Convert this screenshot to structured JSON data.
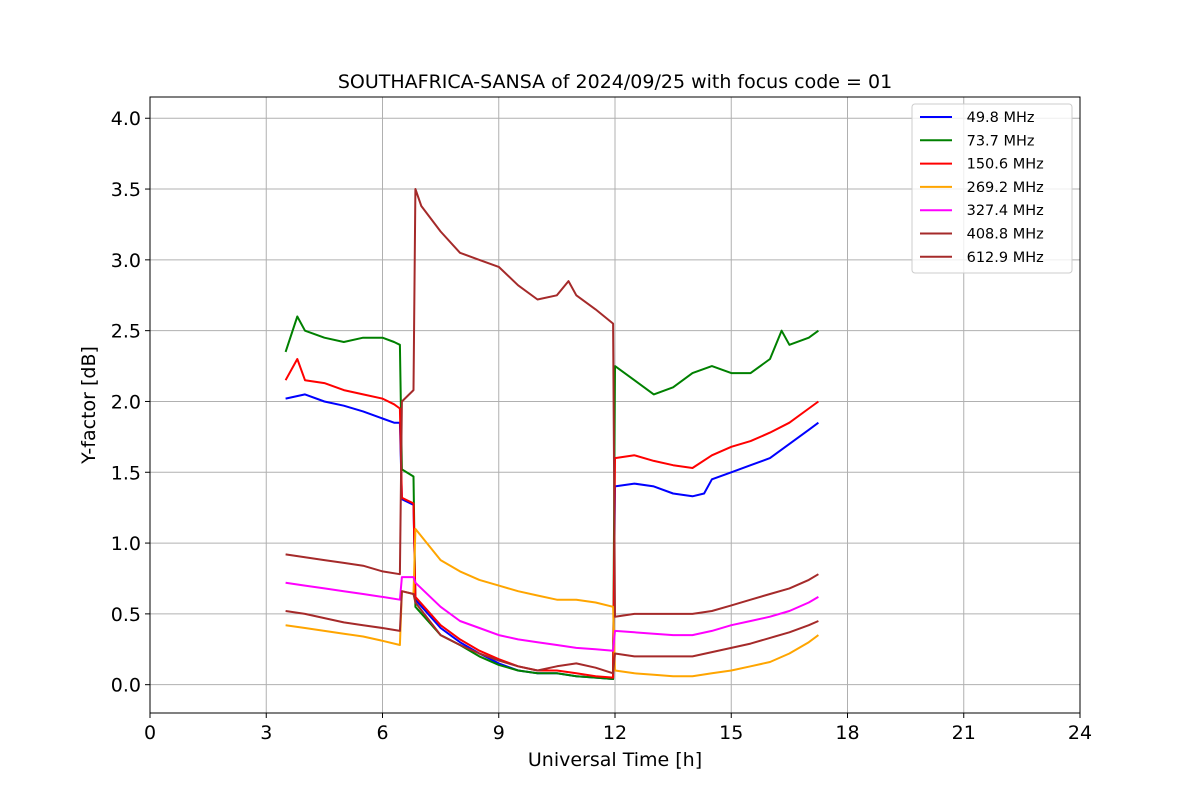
{
  "chart_data": {
    "type": "line",
    "title": "SOUTHAFRICA-SANSA of 2024/09/25 with focus code = 01",
    "xlabel": "Universal Time [h]",
    "ylabel": "Y-factor [dB]",
    "xlim": [
      0,
      24
    ],
    "ylim": [
      -0.2,
      4.15
    ],
    "xticks": [
      0,
      3,
      6,
      9,
      12,
      15,
      18,
      21,
      24
    ],
    "xtick_labels": [
      "0",
      "3",
      "6",
      "9",
      "12",
      "15",
      "18",
      "21",
      "24"
    ],
    "yticks": [
      0.0,
      0.5,
      1.0,
      1.5,
      2.0,
      2.5,
      3.0,
      3.5,
      4.0
    ],
    "ytick_labels": [
      "0.0",
      "0.5",
      "1.0",
      "1.5",
      "2.0",
      "2.5",
      "3.0",
      "3.5",
      "4.0"
    ],
    "grid": true,
    "legend_position": "top-right",
    "series": [
      {
        "name": " 49.8 MHz",
        "color": "#0000ff",
        "points": [
          [
            3.5,
            2.02
          ],
          [
            4.0,
            2.05
          ],
          [
            4.5,
            2.0
          ],
          [
            5.0,
            1.97
          ],
          [
            5.5,
            1.93
          ],
          [
            6.0,
            1.88
          ],
          [
            6.3,
            1.85
          ],
          [
            6.45,
            1.85
          ],
          [
            6.5,
            1.31
          ],
          [
            6.8,
            1.27
          ],
          [
            6.85,
            0.6
          ],
          [
            7.5,
            0.4
          ],
          [
            8.0,
            0.3
          ],
          [
            8.5,
            0.22
          ],
          [
            9.0,
            0.15
          ],
          [
            9.5,
            0.1
          ],
          [
            10.0,
            0.08
          ],
          [
            10.5,
            0.08
          ],
          [
            11.0,
            0.06
          ],
          [
            11.5,
            0.05
          ],
          [
            11.95,
            0.04
          ],
          [
            12.0,
            1.4
          ],
          [
            12.5,
            1.42
          ],
          [
            13.0,
            1.4
          ],
          [
            13.5,
            1.35
          ],
          [
            14.0,
            1.33
          ],
          [
            14.3,
            1.35
          ],
          [
            14.5,
            1.45
          ],
          [
            15.0,
            1.5
          ],
          [
            15.5,
            1.55
          ],
          [
            16.0,
            1.6
          ],
          [
            16.5,
            1.7
          ],
          [
            17.0,
            1.8
          ],
          [
            17.25,
            1.85
          ]
        ]
      },
      {
        "name": " 73.7 MHz",
        "color": "#008000",
        "points": [
          [
            3.5,
            2.35
          ],
          [
            3.8,
            2.6
          ],
          [
            4.0,
            2.5
          ],
          [
            4.5,
            2.45
          ],
          [
            5.0,
            2.42
          ],
          [
            5.5,
            2.45
          ],
          [
            6.0,
            2.45
          ],
          [
            6.3,
            2.42
          ],
          [
            6.45,
            2.4
          ],
          [
            6.5,
            1.52
          ],
          [
            6.8,
            1.47
          ],
          [
            6.85,
            0.55
          ],
          [
            7.5,
            0.35
          ],
          [
            8.0,
            0.28
          ],
          [
            8.5,
            0.2
          ],
          [
            9.0,
            0.14
          ],
          [
            9.5,
            0.1
          ],
          [
            10.0,
            0.08
          ],
          [
            10.5,
            0.08
          ],
          [
            11.0,
            0.06
          ],
          [
            11.5,
            0.05
          ],
          [
            11.95,
            0.04
          ],
          [
            12.0,
            2.25
          ],
          [
            12.5,
            2.15
          ],
          [
            13.0,
            2.05
          ],
          [
            13.5,
            2.1
          ],
          [
            14.0,
            2.2
          ],
          [
            14.5,
            2.25
          ],
          [
            15.0,
            2.2
          ],
          [
            15.5,
            2.2
          ],
          [
            16.0,
            2.3
          ],
          [
            16.3,
            2.5
          ],
          [
            16.5,
            2.4
          ],
          [
            17.0,
            2.45
          ],
          [
            17.25,
            2.5
          ]
        ]
      },
      {
        "name": " 150.6 MHz",
        "color": "#ff0000",
        "points": [
          [
            3.5,
            2.15
          ],
          [
            3.8,
            2.3
          ],
          [
            4.0,
            2.15
          ],
          [
            4.5,
            2.13
          ],
          [
            5.0,
            2.08
          ],
          [
            5.5,
            2.05
          ],
          [
            6.0,
            2.02
          ],
          [
            6.3,
            1.98
          ],
          [
            6.45,
            1.95
          ],
          [
            6.5,
            1.32
          ],
          [
            6.8,
            1.28
          ],
          [
            6.85,
            0.62
          ],
          [
            7.5,
            0.42
          ],
          [
            8.0,
            0.32
          ],
          [
            8.5,
            0.24
          ],
          [
            9.0,
            0.18
          ],
          [
            9.5,
            0.13
          ],
          [
            10.0,
            0.1
          ],
          [
            10.5,
            0.1
          ],
          [
            11.0,
            0.08
          ],
          [
            11.5,
            0.06
          ],
          [
            11.95,
            0.05
          ],
          [
            12.0,
            1.6
          ],
          [
            12.5,
            1.62
          ],
          [
            13.0,
            1.58
          ],
          [
            13.5,
            1.55
          ],
          [
            14.0,
            1.53
          ],
          [
            14.5,
            1.62
          ],
          [
            15.0,
            1.68
          ],
          [
            15.5,
            1.72
          ],
          [
            16.0,
            1.78
          ],
          [
            16.5,
            1.85
          ],
          [
            17.0,
            1.95
          ],
          [
            17.25,
            2.0
          ]
        ]
      },
      {
        "name": " 269.2 MHz",
        "color": "#ffa500",
        "points": [
          [
            3.5,
            0.42
          ],
          [
            4.0,
            0.4
          ],
          [
            4.5,
            0.38
          ],
          [
            5.0,
            0.36
          ],
          [
            5.5,
            0.34
          ],
          [
            6.0,
            0.31
          ],
          [
            6.45,
            0.28
          ],
          [
            6.5,
            0.66
          ],
          [
            6.8,
            0.64
          ],
          [
            6.85,
            1.1
          ],
          [
            7.5,
            0.88
          ],
          [
            8.0,
            0.8
          ],
          [
            8.5,
            0.74
          ],
          [
            9.0,
            0.7
          ],
          [
            9.5,
            0.66
          ],
          [
            10.0,
            0.63
          ],
          [
            10.5,
            0.6
          ],
          [
            11.0,
            0.6
          ],
          [
            11.5,
            0.58
          ],
          [
            11.95,
            0.55
          ],
          [
            12.0,
            0.1
          ],
          [
            12.5,
            0.08
          ],
          [
            13.0,
            0.07
          ],
          [
            13.5,
            0.06
          ],
          [
            14.0,
            0.06
          ],
          [
            14.5,
            0.08
          ],
          [
            15.0,
            0.1
          ],
          [
            15.5,
            0.13
          ],
          [
            16.0,
            0.16
          ],
          [
            16.5,
            0.22
          ],
          [
            17.0,
            0.3
          ],
          [
            17.25,
            0.35
          ]
        ]
      },
      {
        "name": " 327.4 MHz",
        "color": "#ff00ff",
        "points": [
          [
            3.5,
            0.72
          ],
          [
            4.0,
            0.7
          ],
          [
            4.5,
            0.68
          ],
          [
            5.0,
            0.66
          ],
          [
            5.5,
            0.64
          ],
          [
            6.0,
            0.62
          ],
          [
            6.45,
            0.6
          ],
          [
            6.5,
            0.76
          ],
          [
            6.8,
            0.76
          ],
          [
            6.85,
            0.72
          ],
          [
            7.5,
            0.55
          ],
          [
            8.0,
            0.45
          ],
          [
            8.5,
            0.4
          ],
          [
            9.0,
            0.35
          ],
          [
            9.5,
            0.32
          ],
          [
            10.0,
            0.3
          ],
          [
            10.5,
            0.28
          ],
          [
            11.0,
            0.26
          ],
          [
            11.5,
            0.25
          ],
          [
            11.95,
            0.24
          ],
          [
            12.0,
            0.38
          ],
          [
            12.5,
            0.37
          ],
          [
            13.0,
            0.36
          ],
          [
            13.5,
            0.35
          ],
          [
            14.0,
            0.35
          ],
          [
            14.5,
            0.38
          ],
          [
            15.0,
            0.42
          ],
          [
            15.5,
            0.45
          ],
          [
            16.0,
            0.48
          ],
          [
            16.5,
            0.52
          ],
          [
            17.0,
            0.58
          ],
          [
            17.25,
            0.62
          ]
        ]
      },
      {
        "name": " 408.8 MHz",
        "color": "#a52a2a",
        "points": [
          [
            3.5,
            0.52
          ],
          [
            4.0,
            0.5
          ],
          [
            4.5,
            0.47
          ],
          [
            5.0,
            0.44
          ],
          [
            5.5,
            0.42
          ],
          [
            6.0,
            0.4
          ],
          [
            6.45,
            0.38
          ],
          [
            6.5,
            0.66
          ],
          [
            6.8,
            0.64
          ],
          [
            6.85,
            0.58
          ],
          [
            7.5,
            0.35
          ],
          [
            8.0,
            0.28
          ],
          [
            8.5,
            0.22
          ],
          [
            9.0,
            0.17
          ],
          [
            9.5,
            0.13
          ],
          [
            10.0,
            0.1
          ],
          [
            10.5,
            0.13
          ],
          [
            11.0,
            0.15
          ],
          [
            11.5,
            0.12
          ],
          [
            11.95,
            0.08
          ],
          [
            12.0,
            0.22
          ],
          [
            12.5,
            0.2
          ],
          [
            13.0,
            0.2
          ],
          [
            13.5,
            0.2
          ],
          [
            14.0,
            0.2
          ],
          [
            14.5,
            0.23
          ],
          [
            15.0,
            0.26
          ],
          [
            15.5,
            0.29
          ],
          [
            16.0,
            0.33
          ],
          [
            16.5,
            0.37
          ],
          [
            17.0,
            0.42
          ],
          [
            17.25,
            0.45
          ]
        ]
      },
      {
        "name": " 612.9 MHz",
        "color": "#a52a2a",
        "points": [
          [
            3.5,
            0.92
          ],
          [
            4.0,
            0.9
          ],
          [
            4.5,
            0.88
          ],
          [
            5.0,
            0.86
          ],
          [
            5.5,
            0.84
          ],
          [
            6.0,
            0.8
          ],
          [
            6.45,
            0.78
          ],
          [
            6.5,
            2.0
          ],
          [
            6.8,
            2.08
          ],
          [
            6.85,
            3.5
          ],
          [
            7.0,
            3.38
          ],
          [
            7.5,
            3.2
          ],
          [
            8.0,
            3.05
          ],
          [
            8.5,
            3.0
          ],
          [
            9.0,
            2.95
          ],
          [
            9.5,
            2.82
          ],
          [
            10.0,
            2.72
          ],
          [
            10.5,
            2.75
          ],
          [
            10.8,
            2.85
          ],
          [
            11.0,
            2.75
          ],
          [
            11.5,
            2.65
          ],
          [
            11.95,
            2.55
          ],
          [
            12.0,
            0.48
          ],
          [
            12.5,
            0.5
          ],
          [
            13.0,
            0.5
          ],
          [
            13.5,
            0.5
          ],
          [
            14.0,
            0.5
          ],
          [
            14.5,
            0.52
          ],
          [
            15.0,
            0.56
          ],
          [
            15.5,
            0.6
          ],
          [
            16.0,
            0.64
          ],
          [
            16.5,
            0.68
          ],
          [
            17.0,
            0.74
          ],
          [
            17.25,
            0.78
          ]
        ]
      }
    ]
  }
}
